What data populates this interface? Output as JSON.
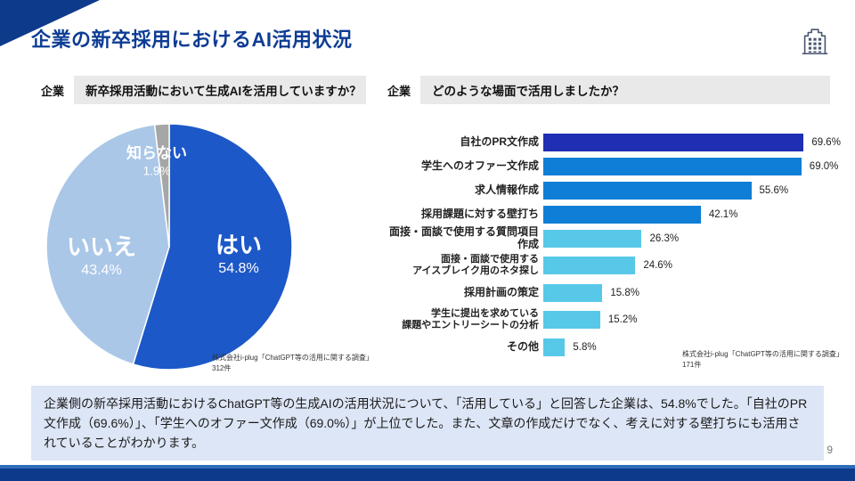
{
  "slide": {
    "title": "企業の新卒採用におけるAI活用状況",
    "page_number": "9"
  },
  "left_panel": {
    "tag": "企業",
    "question": "新卒採用活動において生成AIを活用していますか？",
    "source_line1": "株式会社i-plug「ChatGPT等の活用に関する調査」",
    "source_line2": "312件"
  },
  "right_panel": {
    "tag": "企業",
    "question": "どのような場面で活用しましたか？",
    "source_line1": "株式会社i-plug「ChatGPT等の活用に関する調査」",
    "source_line2": "171件"
  },
  "summary": {
    "text": "企業側の新卒採用活動におけるChatGPT等の生成AIの活用状況について、「活用している」と回答した企業は、54.8%でした。「自社のPR文作成（69.6%）」、「学生へのオファー文作成（69.0%）」が上位でした。また、文章の作成だけでなく、考えに対する壁打ちにも活用されていることがわかります。"
  },
  "chart_data": [
    {
      "type": "pie",
      "title": "新卒採用活動において生成AIを活用していますか？",
      "labels": [
        "はい",
        "いいえ",
        "知らない"
      ],
      "values": [
        54.8,
        43.4,
        1.9
      ],
      "value_labels": [
        "54.8%",
        "43.4%",
        "1.9%"
      ],
      "colors": [
        "#1d58c8",
        "#aac7e8",
        "#a6a6a6"
      ],
      "start_angle": "12-oclock",
      "direction": "clockwise",
      "sample_size": "312件",
      "source": "株式会社i-plug「ChatGPT等の活用に関する調査」"
    },
    {
      "type": "bar",
      "orientation": "horizontal",
      "title": "どのような場面で活用しましたか？",
      "categories": [
        "自社のPR文作成",
        "学生へのオファー文作成",
        "求人情報作成",
        "採用課題に対する壁打ち",
        "面接・面談で使用する質問項目作成",
        "面接・面談で使用する\nアイスブレイク用のネタ探し",
        "採用計画の策定",
        "学生に提出を求めている\n課題やエントリーシートの分析",
        "その他"
      ],
      "values": [
        69.6,
        69.0,
        55.6,
        42.1,
        26.3,
        24.6,
        15.8,
        15.2,
        5.8
      ],
      "value_labels": [
        "69.6%",
        "69.0%",
        "55.6%",
        "42.1%",
        "26.3%",
        "24.6%",
        "15.8%",
        "15.2%",
        "5.8%"
      ],
      "colors": [
        "#1f2eb2",
        "#0f7ed6",
        "#0f7ed6",
        "#0f7ed6",
        "#58c8e8",
        "#58c8e8",
        "#58c8e8",
        "#58c8e8",
        "#58c8e8"
      ],
      "xlim": [
        0,
        75
      ],
      "grid": false,
      "legend": false,
      "sample_size": "171件",
      "source": "株式会社i-plug「ChatGPT等の活用に関する調査」"
    }
  ]
}
